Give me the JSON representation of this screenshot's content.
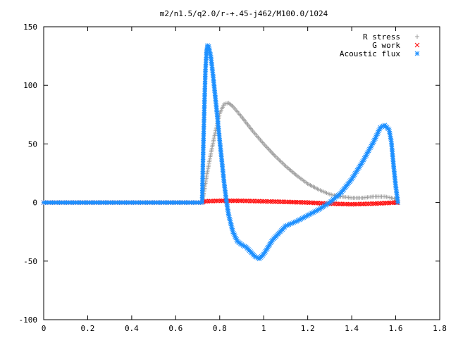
{
  "chart_data": {
    "type": "scatter",
    "title": "m2/n1.5/q2.0/r-+.45-j462/M100.0/1024",
    "xlabel": "",
    "ylabel": "",
    "xlim": [
      0,
      1.8
    ],
    "ylim": [
      -100,
      150
    ],
    "xticks": [
      "0",
      "0.2",
      "0.4",
      "0.6",
      "0.8",
      "1",
      "1.2",
      "1.4",
      "1.6",
      "1.8"
    ],
    "yticks": [
      "-100",
      "-50",
      "0",
      "50",
      "100",
      "150"
    ],
    "grid": false,
    "legend_position": "top-right",
    "series": [
      {
        "name": "R stress",
        "marker": "+",
        "color": "#a0a0a0",
        "x": [
          0.0,
          0.2,
          0.4,
          0.6,
          0.72,
          0.725,
          0.74,
          0.76,
          0.78,
          0.8,
          0.82,
          0.84,
          0.86,
          0.9,
          0.95,
          1.0,
          1.05,
          1.1,
          1.15,
          1.2,
          1.25,
          1.3,
          1.35,
          1.4,
          1.45,
          1.5,
          1.55,
          1.58,
          1.6,
          1.61
        ],
        "y": [
          0,
          0,
          0,
          0,
          0,
          5,
          22,
          42,
          60,
          76,
          84,
          85,
          82,
          73,
          61,
          50,
          40,
          31,
          23,
          16,
          11,
          7,
          5,
          4,
          4,
          5,
          5,
          4,
          3,
          1
        ]
      },
      {
        "name": "G work",
        "marker": "x",
        "color": "#ff0000",
        "x": [
          0.0,
          0.2,
          0.4,
          0.6,
          0.72,
          0.73,
          0.8,
          0.9,
          1.0,
          1.1,
          1.2,
          1.3,
          1.4,
          1.5,
          1.6,
          1.61
        ],
        "y": [
          0,
          0,
          0,
          0,
          0,
          1,
          1.5,
          1.5,
          1,
          0.5,
          0,
          -1,
          -1.5,
          -1,
          0,
          0
        ]
      },
      {
        "name": "Acoustic flux",
        "marker": "*",
        "color": "#1e90ff",
        "x": [
          0.0,
          0.2,
          0.4,
          0.6,
          0.72,
          0.725,
          0.73,
          0.735,
          0.74,
          0.745,
          0.75,
          0.76,
          0.77,
          0.78,
          0.79,
          0.8,
          0.81,
          0.82,
          0.83,
          0.84,
          0.86,
          0.88,
          0.9,
          0.92,
          0.94,
          0.96,
          0.98,
          1.0,
          1.02,
          1.04,
          1.06,
          1.08,
          1.1,
          1.15,
          1.2,
          1.25,
          1.3,
          1.35,
          1.4,
          1.45,
          1.5,
          1.53,
          1.55,
          1.57,
          1.58,
          1.59,
          1.6,
          1.61
        ],
        "y": [
          0,
          0,
          0,
          0,
          0,
          44,
          80,
          112,
          128,
          134,
          133,
          124,
          108,
          90,
          72,
          53,
          35,
          17,
          2,
          -10,
          -25,
          -33,
          -36,
          -38,
          -42,
          -46,
          -48,
          -44,
          -38,
          -32,
          -28,
          -24,
          -20,
          -16,
          -11,
          -6,
          0,
          8,
          20,
          35,
          52,
          64,
          66,
          62,
          52,
          32,
          14,
          0
        ]
      }
    ]
  }
}
